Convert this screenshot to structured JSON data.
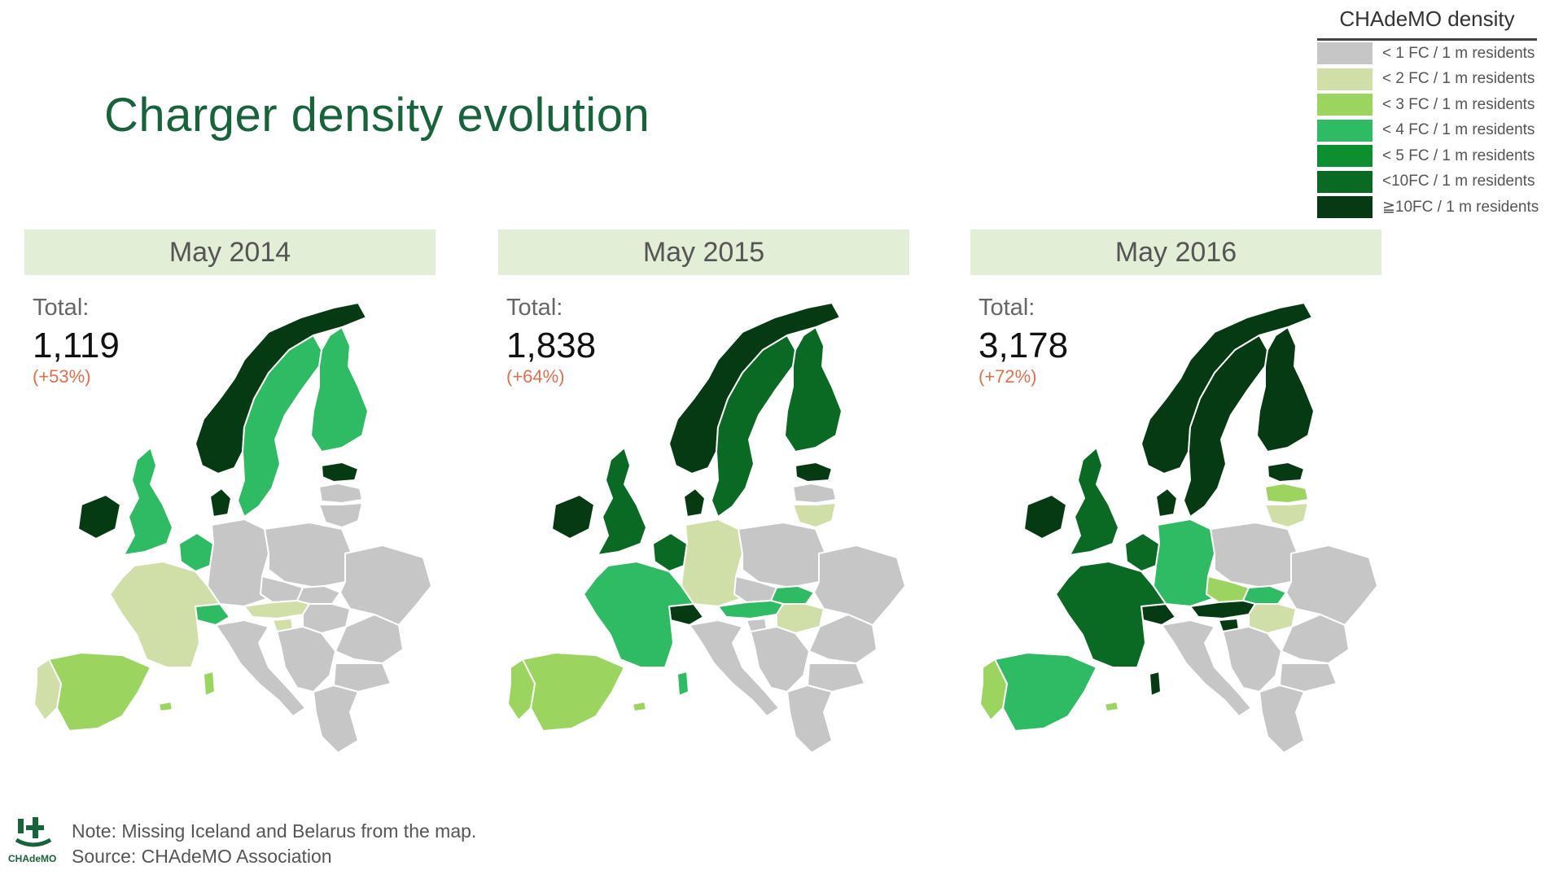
{
  "title": "Charger density evolution",
  "legend": {
    "title": "CHAdeMO density",
    "items": [
      {
        "label": "< 1 FC / 1 m residents",
        "color": "#c6c6c6"
      },
      {
        "label": "< 2 FC / 1 m residents",
        "color": "#cfdfa7"
      },
      {
        "label": "< 3 FC / 1 m residents",
        "color": "#9bd45e"
      },
      {
        "label": "< 4 FC / 1 m residents",
        "color": "#2fbb63"
      },
      {
        "label": "< 5 FC / 1 m residents",
        "color": "#0e8f2f"
      },
      {
        "label": "<10FC / 1 m residents",
        "color": "#0a6a24"
      },
      {
        "label": "≧10FC / 1 m residents",
        "color": "#063a12"
      }
    ]
  },
  "panels": [
    {
      "heading": "May 2014",
      "total_label": "Total:",
      "total": "1,119",
      "change": "(+53%)",
      "colors": {
        "norway": "#063a12",
        "sweden": "#2fbb63",
        "finland": "#2fbb63",
        "estonia": "#063a12",
        "latvia": "#c6c6c6",
        "lithuania": "#c6c6c6",
        "denmark": "#063a12",
        "uk": "#2fbb63",
        "ireland": "#063a12",
        "benelux": "#2fbb63",
        "germany": "#c6c6c6",
        "poland": "#c6c6c6",
        "czech": "#c6c6c6",
        "slovakia": "#c6c6c6",
        "austria": "#cfdfa7",
        "hungary": "#c6c6c6",
        "switzerland": "#2fbb63",
        "slovenia": "#cfdfa7",
        "france": "#cfdfa7",
        "spain": "#9bd45e",
        "portugal": "#cfdfa7",
        "italy": "#c6c6c6",
        "sardinia": "#9bd45e",
        "balkans": "#c6c6c6",
        "romania": "#c6c6c6",
        "bulgaria": "#c6c6c6",
        "greece": "#c6c6c6",
        "ukraine": "#c6c6c6",
        "balearic": "#9bd45e"
      }
    },
    {
      "heading": "May 2015",
      "total_label": "Total:",
      "total": "1,838",
      "change": "(+64%)",
      "colors": {
        "norway": "#063a12",
        "sweden": "#0a6a24",
        "finland": "#0a6a24",
        "estonia": "#063a12",
        "latvia": "#c6c6c6",
        "lithuania": "#cfdfa7",
        "denmark": "#063a12",
        "uk": "#0a6a24",
        "ireland": "#063a12",
        "benelux": "#0a6a24",
        "germany": "#cfdfa7",
        "poland": "#c6c6c6",
        "czech": "#c6c6c6",
        "slovakia": "#2fbb63",
        "austria": "#2fbb63",
        "hungary": "#cfdfa7",
        "switzerland": "#063a12",
        "slovenia": "#c6c6c6",
        "france": "#2fbb63",
        "spain": "#9bd45e",
        "portugal": "#9bd45e",
        "italy": "#c6c6c6",
        "sardinia": "#2fbb63",
        "balkans": "#c6c6c6",
        "romania": "#c6c6c6",
        "bulgaria": "#c6c6c6",
        "greece": "#c6c6c6",
        "ukraine": "#c6c6c6",
        "balearic": "#9bd45e"
      }
    },
    {
      "heading": "May 2016",
      "total_label": "Total:",
      "total": "3,178",
      "change": "(+72%)",
      "colors": {
        "norway": "#063a12",
        "sweden": "#063a12",
        "finland": "#063a12",
        "estonia": "#063a12",
        "latvia": "#9bd45e",
        "lithuania": "#cfdfa7",
        "denmark": "#063a12",
        "uk": "#0a6a24",
        "ireland": "#063a12",
        "benelux": "#0a6a24",
        "germany": "#2fbb63",
        "poland": "#c6c6c6",
        "czech": "#9bd45e",
        "slovakia": "#2fbb63",
        "austria": "#063a12",
        "hungary": "#cfdfa7",
        "switzerland": "#063a12",
        "slovenia": "#063a12",
        "france": "#0a6a24",
        "spain": "#2fbb63",
        "portugal": "#9bd45e",
        "italy": "#c6c6c6",
        "sardinia": "#063a12",
        "balkans": "#c6c6c6",
        "romania": "#c6c6c6",
        "bulgaria": "#c6c6c6",
        "greece": "#c6c6c6",
        "ukraine": "#c6c6c6",
        "balearic": "#9bd45e"
      }
    }
  ],
  "footer": {
    "logo_text": "CHAdeMO",
    "note": "Note: Missing Iceland and Belarus from the map.",
    "source": "Source: CHAdeMO Association"
  }
}
